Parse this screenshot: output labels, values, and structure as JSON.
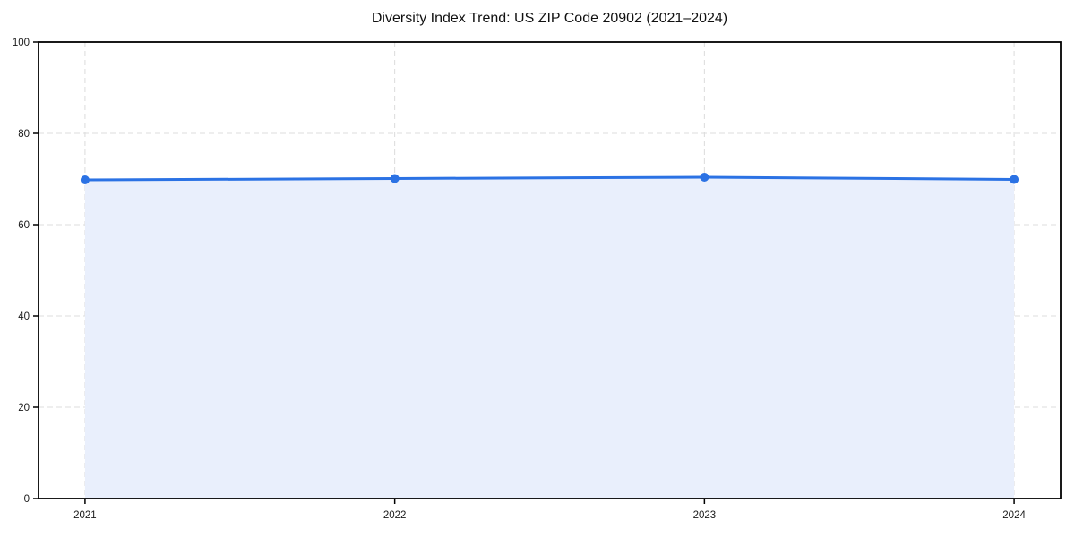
{
  "chart_data": {
    "type": "area",
    "title": "Diversity Index Trend: US ZIP Code 20902 (2021–2024)",
    "categories": [
      "2021",
      "2022",
      "2023",
      "2024"
    ],
    "series": [
      {
        "name": "Diversity Index",
        "values": [
          69.8,
          70.1,
          70.4,
          69.9
        ]
      }
    ],
    "xlabel": "",
    "ylabel": "",
    "ylim": [
      0,
      100
    ],
    "yticks": [
      0,
      20,
      40,
      60,
      80,
      100
    ],
    "grid": "dashed, both axes",
    "legend": "none",
    "colors": {
      "line": "#2b72e4",
      "marker": "#2b72e4",
      "fill": "#e9effc",
      "grid": "#dcdcdc",
      "spine": "#000000",
      "text": "#1a1a1a",
      "background": "#ffffff"
    }
  }
}
